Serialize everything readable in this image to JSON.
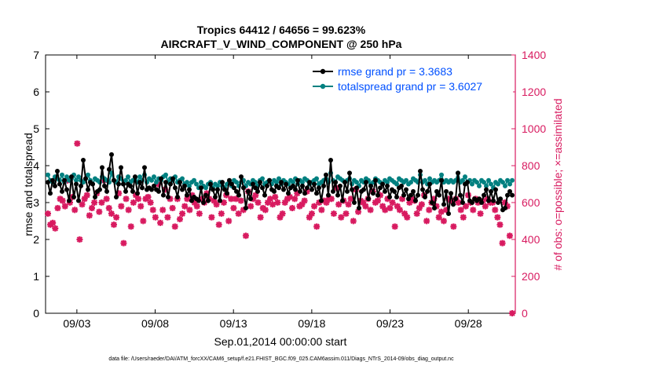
{
  "chart_data": {
    "type": "line",
    "title": "Tropics 64412 / 64656 = 99.623%",
    "subtitle": "AIRCRAFT_V_WIND_COMPONENT @ 250 hPa",
    "xlabel": "Sep.01,2014 00:00:00 start",
    "ylabel": "rmse and totalspread",
    "ylabel_right": "# of obs: o=possible; ×=assimilated",
    "footnote": "data file: /Users/raeder/DAI/ATM_forcXX/CAM6_setup/f.e21.FHIST_BGC.f09_025.CAM6assim.011/Diags_NTrS_2014-09/obs_diag_output.nc",
    "x_range": [
      1.0,
      31.0
    ],
    "ylim": [
      0,
      7
    ],
    "ylim_right": [
      0,
      1400
    ],
    "x_ticks": [
      3,
      8,
      13,
      18,
      23,
      28
    ],
    "x_tick_labels": [
      "09/03",
      "09/08",
      "09/13",
      "09/18",
      "09/23",
      "09/28"
    ],
    "y_ticks": [
      0,
      1,
      2,
      3,
      4,
      5,
      6,
      7
    ],
    "y_tick_labels": [
      "0",
      "1",
      "2",
      "3",
      "4",
      "5",
      "6",
      "7"
    ],
    "y_right_ticks": [
      0,
      200,
      400,
      600,
      800,
      1000,
      1200,
      1400
    ],
    "y_right_tick_labels": [
      "0",
      "200",
      "400",
      "600",
      "800",
      "1000",
      "1200",
      "1400"
    ],
    "colors": {
      "rmse": "#000000",
      "totalspread": "#008080",
      "obs": "#d81b60",
      "right_axis": "#d81b60",
      "legend_text": "#0050ff"
    },
    "series": [
      {
        "name": "rmse grand pr = 3.3683",
        "axis": "left",
        "values": [
          3.55,
          3.25,
          3.6,
          3.45,
          3.85,
          3.5,
          3.3,
          3.6,
          3.35,
          3.05,
          3.7,
          3.15,
          3.5,
          3.05,
          3.45,
          4.15,
          3.65,
          3.35,
          3.55,
          3.5,
          3.15,
          3.3,
          3.35,
          3.95,
          3.45,
          3.3,
          3.9,
          4.3,
          3.6,
          3.15,
          3.5,
          3.95,
          3.5,
          3.3,
          3.5,
          3.45,
          3.3,
          3.7,
          3.25,
          3.55,
          3.4,
          3.95,
          3.35,
          3.4,
          3.35,
          3.45,
          3.35,
          3.3,
          3.65,
          3.2,
          3.55,
          3.15,
          3.5,
          3.65,
          3.4,
          3.15,
          3.55,
          3.35,
          3.45,
          3.2,
          3.35,
          3.05,
          3.15,
          3.1,
          3.05,
          3.4,
          3.0,
          3.2,
          3.05,
          3.5,
          3.35,
          3.15,
          3.35,
          3.05,
          3.55,
          3.35,
          3.25,
          3.6,
          3.5,
          3.4,
          3.3,
          3.2,
          3.7,
          3.4,
          2.85,
          3.3,
          3.1,
          3.5,
          3.4,
          3.3,
          3.55,
          3.4,
          3.2,
          3.45,
          3.6,
          3.35,
          3.3,
          3.45,
          3.4,
          3.55,
          3.35,
          3.5,
          3.25,
          3.4,
          3.45,
          3.35,
          3.6,
          3.3,
          3.45,
          3.25,
          3.4,
          3.55,
          3.35,
          3.5,
          3.25,
          3.4,
          3.05,
          3.45,
          3.75,
          3.2,
          4.15,
          3.3,
          3.55,
          3.2,
          3.45,
          3.05,
          3.55,
          3.3,
          3.8,
          3.35,
          3.0,
          3.4,
          2.85,
          3.3,
          3.35,
          3.55,
          3.1,
          3.45,
          3.25,
          3.6,
          3.2,
          3.4,
          3.5,
          3.3,
          3.45,
          3.15,
          3.35,
          3.3,
          3.15,
          3.4,
          3.45,
          3.2,
          3.35,
          3.1,
          3.2,
          3.3,
          3.05,
          3.2,
          3.85,
          3.35,
          3.15,
          3.3,
          3.5,
          3.0,
          2.85,
          3.3,
          3.2,
          3.6,
          2.95,
          3.3,
          2.7,
          3.25,
          2.95,
          3.1,
          3.8,
          3.2,
          3.0,
          3.5,
          3.55,
          3.05,
          3.0,
          3.1,
          3.05,
          3.1,
          3.0,
          3.2,
          3.35,
          3.05,
          3.3,
          3.05,
          3.35,
          3.0,
          3.1,
          2.8,
          2.85,
          3.2,
          3.3,
          3.2
        ]
      },
      {
        "name": "totalspread grand pr = 3.6027",
        "axis": "left",
        "values": [
          3.75,
          3.6,
          3.55,
          3.7,
          3.65,
          3.6,
          3.75,
          3.55,
          3.7,
          3.6,
          3.65,
          3.75,
          3.6,
          3.7,
          3.6,
          3.55,
          3.65,
          3.75,
          3.6,
          3.5,
          3.65,
          3.6,
          3.55,
          3.7,
          3.65,
          3.6,
          3.55,
          3.8,
          3.6,
          3.55,
          3.7,
          3.65,
          3.5,
          3.6,
          3.7,
          3.55,
          3.6,
          3.65,
          3.55,
          3.7,
          3.6,
          3.75,
          3.55,
          3.65,
          3.6,
          3.7,
          3.55,
          3.65,
          3.6,
          3.7,
          3.75,
          3.55,
          3.65,
          3.6,
          3.7,
          3.55,
          3.6,
          3.65,
          3.5,
          3.55,
          3.45,
          3.55,
          3.6,
          3.5,
          3.4,
          3.55,
          3.45,
          3.4,
          3.5,
          3.55,
          3.4,
          3.5,
          3.45,
          3.55,
          3.45,
          3.4,
          3.5,
          3.55,
          3.45,
          3.6,
          3.55,
          3.45,
          3.55,
          3.6,
          3.45,
          3.55,
          3.5,
          3.6,
          3.55,
          3.45,
          3.6,
          3.65,
          3.5,
          3.55,
          3.6,
          3.5,
          3.6,
          3.55,
          3.65,
          3.5,
          3.6,
          3.55,
          3.5,
          3.6,
          3.55,
          3.65,
          3.5,
          3.6,
          3.55,
          3.65,
          3.6,
          3.5,
          3.55,
          3.6,
          3.65,
          3.5,
          3.55,
          3.6,
          3.65,
          3.55,
          3.8,
          3.6,
          3.55,
          3.7,
          3.65,
          3.6,
          3.55,
          3.6,
          3.65,
          3.5,
          3.6,
          3.55,
          3.45,
          3.6,
          3.55,
          3.65,
          3.6,
          3.5,
          3.55,
          3.65,
          3.6,
          3.55,
          3.5,
          3.6,
          3.55,
          3.65,
          3.6,
          3.55,
          3.5,
          3.65,
          3.6,
          3.55,
          3.6,
          3.5,
          3.55,
          3.65,
          3.6,
          3.55,
          3.75,
          3.55,
          3.6,
          3.5,
          3.65,
          3.55,
          3.6,
          3.55,
          3.6,
          3.75,
          3.55,
          3.6,
          3.55,
          3.6,
          3.55,
          3.6,
          3.8,
          3.55,
          3.6,
          3.7,
          3.55,
          3.6,
          3.5,
          3.6,
          3.55,
          3.45,
          3.6,
          3.55,
          3.45,
          3.6,
          3.5,
          3.4,
          3.55,
          3.5,
          3.6,
          3.55,
          3.45,
          3.6,
          3.5,
          3.6
        ]
      }
    ],
    "obs_assimilated": [
      540,
      480,
      490,
      460,
      570,
      620,
      610,
      580,
      720,
      600,
      630,
      560,
      920,
      400,
      590,
      620,
      640,
      530,
      570,
      600,
      650,
      550,
      600,
      720,
      620,
      570,
      540,
      480,
      520,
      650,
      580,
      380,
      620,
      560,
      470,
      600,
      640,
      620,
      580,
      500,
      620,
      630,
      600,
      560,
      520,
      700,
      490,
      560,
      670,
      520,
      620,
      570,
      470,
      620,
      510,
      540,
      580,
      620,
      560,
      640,
      600,
      580,
      540,
      620,
      600,
      650,
      620,
      520,
      610,
      590,
      480,
      540,
      600,
      640,
      500,
      620,
      570,
      620,
      540,
      610,
      560,
      420,
      660,
      580,
      620,
      640,
      600,
      520,
      570,
      560,
      600,
      620,
      590,
      630,
      600,
      520,
      540,
      600,
      620,
      630,
      570,
      620,
      650,
      580,
      590,
      610,
      660,
      520,
      540,
      580,
      470,
      600,
      560,
      610,
      600,
      620,
      620,
      540,
      680,
      590,
      520,
      610,
      540,
      590,
      620,
      500,
      670,
      550,
      610,
      600,
      580,
      620,
      560,
      660,
      600,
      610,
      640,
      580,
      560,
      620,
      570,
      600,
      470,
      580,
      560,
      620,
      540,
      520,
      600,
      620,
      610,
      540,
      570,
      590,
      640,
      500,
      560,
      600,
      620,
      580,
      520,
      550,
      500,
      560,
      620,
      610,
      470,
      620,
      600,
      560,
      520,
      580,
      640,
      600,
      560,
      620,
      600,
      540,
      610,
      580,
      620,
      600,
      600,
      560,
      520,
      480,
      380,
      600,
      580,
      420,
      0
    ],
    "obs_assimilated_name": "# assimilated"
  }
}
